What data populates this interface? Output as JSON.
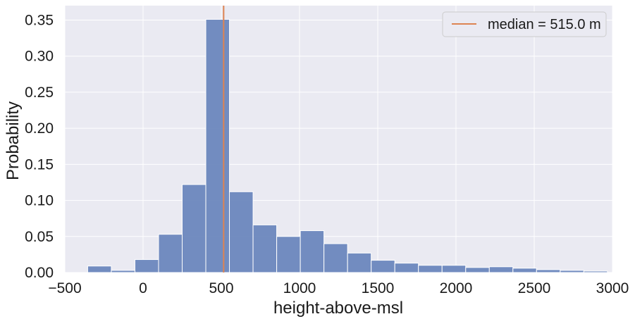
{
  "chart_data": {
    "type": "bar",
    "title": "",
    "xlabel": "height-above-msl",
    "ylabel": "Probability",
    "xlim": [
      -500,
      3000
    ],
    "ylim": [
      0,
      0.37
    ],
    "xticks": [
      -500,
      0,
      500,
      1000,
      1500,
      2000,
      2500,
      3000
    ],
    "xtick_labels": [
      "−500",
      "0",
      "500",
      "1000",
      "1500",
      "2000",
      "2500",
      "3000"
    ],
    "yticks": [
      0.0,
      0.05,
      0.1,
      0.15,
      0.2,
      0.25,
      0.3,
      0.35
    ],
    "ytick_labels": [
      "0.00",
      "0.05",
      "0.10",
      "0.15",
      "0.20",
      "0.25",
      "0.30",
      "0.35"
    ],
    "grid": true,
    "bins": [
      {
        "x0": -354,
        "x1": -203,
        "value": 0.009
      },
      {
        "x0": -203,
        "x1": -52,
        "value": 0.003
      },
      {
        "x0": -52,
        "x1": 99,
        "value": 0.018
      },
      {
        "x0": 99,
        "x1": 250,
        "value": 0.053
      },
      {
        "x0": 250,
        "x1": 401,
        "value": 0.122
      },
      {
        "x0": 401,
        "x1": 552,
        "value": 0.351
      },
      {
        "x0": 552,
        "x1": 703,
        "value": 0.112
      },
      {
        "x0": 703,
        "x1": 854,
        "value": 0.066
      },
      {
        "x0": 854,
        "x1": 1005,
        "value": 0.05
      },
      {
        "x0": 1005,
        "x1": 1156,
        "value": 0.058
      },
      {
        "x0": 1156,
        "x1": 1307,
        "value": 0.04
      },
      {
        "x0": 1307,
        "x1": 1458,
        "value": 0.027
      },
      {
        "x0": 1458,
        "x1": 1609,
        "value": 0.017
      },
      {
        "x0": 1609,
        "x1": 1760,
        "value": 0.013
      },
      {
        "x0": 1760,
        "x1": 1911,
        "value": 0.01
      },
      {
        "x0": 1911,
        "x1": 2062,
        "value": 0.01
      },
      {
        "x0": 2062,
        "x1": 2213,
        "value": 0.007
      },
      {
        "x0": 2213,
        "x1": 2364,
        "value": 0.008
      },
      {
        "x0": 2364,
        "x1": 2515,
        "value": 0.006
      },
      {
        "x0": 2515,
        "x1": 2666,
        "value": 0.004
      },
      {
        "x0": 2666,
        "x1": 2817,
        "value": 0.003
      },
      {
        "x0": 2817,
        "x1": 2968,
        "value": 0.002
      }
    ],
    "median_line": {
      "x": 515.0,
      "label": "median = 515.0 m",
      "color": "#dd8452"
    },
    "legend_position": "top-right",
    "colors": {
      "bar": "#6b87bd",
      "plot_background": "#eaeaf2",
      "grid": "#ffffff"
    }
  }
}
